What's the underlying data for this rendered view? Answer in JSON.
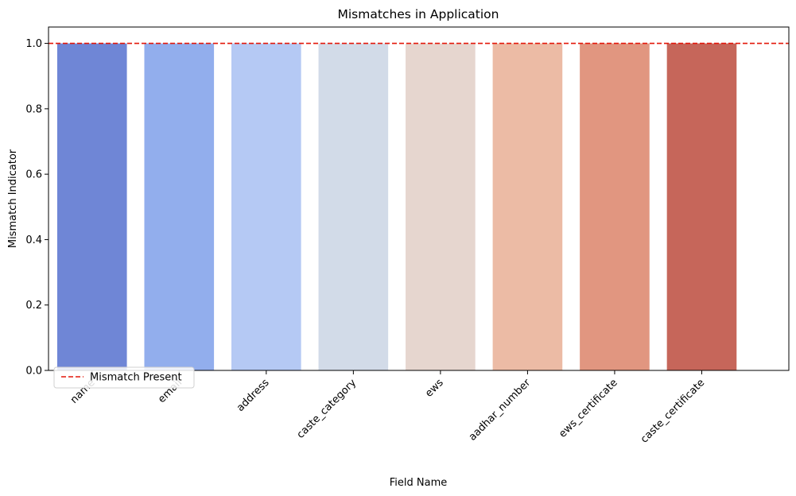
{
  "chart_data": {
    "type": "bar",
    "title": "Mismatches in Application",
    "xlabel": "Field Name",
    "ylabel": "Mismatch Indicator",
    "categories": [
      "name",
      "email",
      "address",
      "caste_category",
      "ews",
      "aadhar_number",
      "ews_certificate",
      "caste_certificate"
    ],
    "values": [
      1,
      1,
      1,
      1,
      1,
      1,
      1,
      1
    ],
    "bar_colors": [
      "#6f86d6",
      "#92aeed",
      "#b5c9f4",
      "#d2dbe8",
      "#e6d6cf",
      "#ecbba5",
      "#e19680",
      "#c6665a"
    ],
    "ylim": [
      0,
      1.05
    ],
    "yticks": [
      "0.0",
      "0.2",
      "0.4",
      "0.6",
      "0.8",
      "1.0"
    ],
    "reference_line": {
      "y": 1.0,
      "color": "#e3170a",
      "style": "dashed",
      "label": "Mismatch Present"
    },
    "legend": {
      "placement": "lower-left",
      "entries": [
        "Mismatch Present"
      ]
    },
    "grid": false
  }
}
